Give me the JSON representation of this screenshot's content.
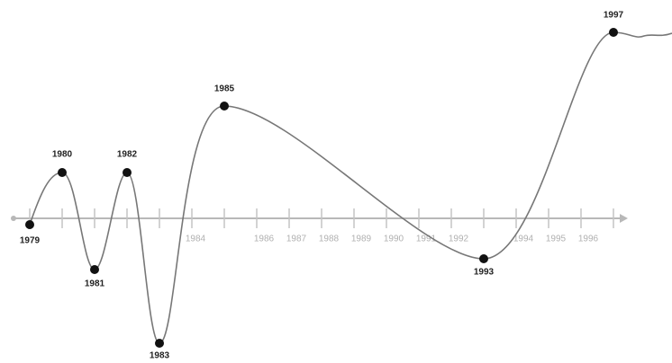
{
  "axis": {
    "tick_labels": [
      "1984",
      "1986",
      "1987",
      "1988",
      "1989",
      "1990",
      "1991",
      "1992",
      "1994",
      "1995",
      "1996"
    ]
  },
  "points": [
    {
      "label": "1979"
    },
    {
      "label": "1980"
    },
    {
      "label": "1981"
    },
    {
      "label": "1982"
    },
    {
      "label": "1983"
    },
    {
      "label": "1985"
    },
    {
      "label": "1993"
    },
    {
      "label": "1997"
    }
  ]
}
